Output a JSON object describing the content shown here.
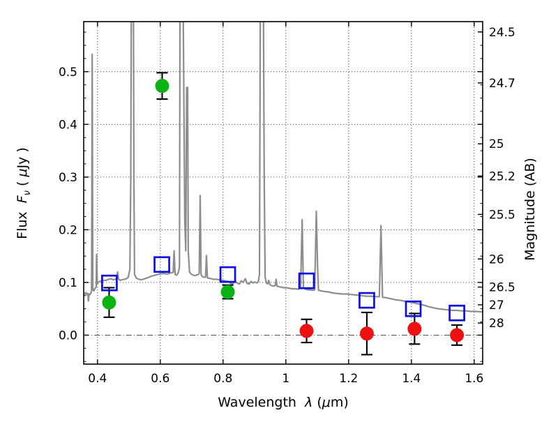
{
  "chart_data": {
    "type": "line+scatter",
    "title": "",
    "xlabel": "Wavelength λ (μm)",
    "ylabel_left": "Flux Fν ( μJy )",
    "ylabel_right": "Magnitude (AB)",
    "xlim": [
      0.356,
      1.627
    ],
    "ylim": [
      -0.055,
      0.595
    ],
    "grid": true,
    "grid_style": "dotted, zero line dash-dot",
    "x_ticks": {
      "values": [
        0.4,
        0.6,
        0.8,
        1.0,
        1.2,
        1.4,
        1.6
      ],
      "labels": [
        "0.4",
        "0.6",
        "0.8",
        "1",
        "1.2",
        "1.4",
        "1.6"
      ]
    },
    "y_ticks_left": {
      "values": [
        0.0,
        0.1,
        0.2,
        0.3,
        0.4,
        0.5
      ],
      "labels": [
        "0.0",
        "0.1",
        "0.2",
        "0.3",
        "0.4",
        "0.5"
      ]
    },
    "y_minor_step": 0.025,
    "mag_zeropoint_ab_ujy": 23.9,
    "y_ticks_right": {
      "values": [
        24.5,
        24.7,
        25.0,
        25.2,
        25.5,
        26.0,
        26.5,
        27.0,
        28.0
      ],
      "labels": [
        "24.5",
        "24.7",
        "25",
        "25.2",
        "25.5",
        "26",
        "26.5",
        "27",
        "28"
      ]
    },
    "colors": {
      "spectrum": "#8d8d8d",
      "detections": "#0ab214",
      "model_photometry": "#0d0de8",
      "nondetections": "#ee1111",
      "errorbar": "#000000",
      "frame": "#000000"
    },
    "series": [
      {
        "name": "model-spectrum",
        "type": "line",
        "color": "#8d8d8d",
        "points": [
          [
            0.356,
            0.08
          ],
          [
            0.36,
            0.078
          ],
          [
            0.363,
            0.081
          ],
          [
            0.366,
            0.077
          ],
          [
            0.369,
            0.079
          ],
          [
            0.371,
            0.065
          ],
          [
            0.373,
            0.078
          ],
          [
            0.376,
            0.077
          ],
          [
            0.379,
            0.08
          ],
          [
            0.381,
            0.086
          ],
          [
            0.383,
            0.533
          ],
          [
            0.385,
            0.086
          ],
          [
            0.388,
            0.084
          ],
          [
            0.391,
            0.088
          ],
          [
            0.394,
            0.09
          ],
          [
            0.396,
            0.092
          ],
          [
            0.397,
            0.153
          ],
          [
            0.399,
            0.097
          ],
          [
            0.402,
            0.1
          ],
          [
            0.407,
            0.102
          ],
          [
            0.413,
            0.103
          ],
          [
            0.42,
            0.104
          ],
          [
            0.428,
            0.104
          ],
          [
            0.435,
            0.106
          ],
          [
            0.443,
            0.107
          ],
          [
            0.45,
            0.105
          ],
          [
            0.457,
            0.106
          ],
          [
            0.461,
            0.108
          ],
          [
            0.464,
            0.12
          ],
          [
            0.467,
            0.106
          ],
          [
            0.472,
            0.104
          ],
          [
            0.478,
            0.105
          ],
          [
            0.485,
            0.106
          ],
          [
            0.492,
            0.107
          ],
          [
            0.498,
            0.11
          ],
          [
            0.503,
            0.125
          ],
          [
            0.506,
            0.3
          ],
          [
            0.508,
            0.7
          ],
          [
            0.514,
            0.7
          ],
          [
            0.516,
            0.3
          ],
          [
            0.518,
            0.115
          ],
          [
            0.524,
            0.108
          ],
          [
            0.532,
            0.106
          ],
          [
            0.541,
            0.105
          ],
          [
            0.55,
            0.107
          ],
          [
            0.56,
            0.109
          ],
          [
            0.572,
            0.112
          ],
          [
            0.585,
            0.114
          ],
          [
            0.598,
            0.116
          ],
          [
            0.61,
            0.117
          ],
          [
            0.622,
            0.116
          ],
          [
            0.633,
            0.118
          ],
          [
            0.641,
            0.119
          ],
          [
            0.644,
            0.16
          ],
          [
            0.647,
            0.115
          ],
          [
            0.652,
            0.114
          ],
          [
            0.657,
            0.118
          ],
          [
            0.661,
            0.13
          ],
          [
            0.663,
            0.7
          ],
          [
            0.672,
            0.7
          ],
          [
            0.675,
            0.45
          ],
          [
            0.678,
            0.22
          ],
          [
            0.681,
            0.16
          ],
          [
            0.684,
            0.47
          ],
          [
            0.687,
            0.47
          ],
          [
            0.689,
            0.16
          ],
          [
            0.693,
            0.12
          ],
          [
            0.698,
            0.116
          ],
          [
            0.704,
            0.114
          ],
          [
            0.71,
            0.113
          ],
          [
            0.716,
            0.114
          ],
          [
            0.721,
            0.115
          ],
          [
            0.724,
            0.118
          ],
          [
            0.727,
            0.265
          ],
          [
            0.73,
            0.115
          ],
          [
            0.734,
            0.111
          ],
          [
            0.739,
            0.11
          ],
          [
            0.744,
            0.11
          ],
          [
            0.747,
            0.151
          ],
          [
            0.75,
            0.109
          ],
          [
            0.755,
            0.108
          ],
          [
            0.762,
            0.107
          ],
          [
            0.77,
            0.106
          ],
          [
            0.779,
            0.106
          ],
          [
            0.788,
            0.105
          ],
          [
            0.797,
            0.104
          ],
          [
            0.806,
            0.103
          ],
          [
            0.815,
            0.102
          ],
          [
            0.823,
            0.099
          ],
          [
            0.831,
            0.097
          ],
          [
            0.838,
            0.102
          ],
          [
            0.845,
            0.099
          ],
          [
            0.852,
            0.097
          ],
          [
            0.858,
            0.103
          ],
          [
            0.864,
            0.1
          ],
          [
            0.871,
            0.107
          ],
          [
            0.877,
            0.098
          ],
          [
            0.883,
            0.097
          ],
          [
            0.889,
            0.102
          ],
          [
            0.895,
            0.099
          ],
          [
            0.901,
            0.101
          ],
          [
            0.907,
            0.099
          ],
          [
            0.912,
            0.101
          ],
          [
            0.916,
            0.115
          ],
          [
            0.919,
            0.7
          ],
          [
            0.928,
            0.7
          ],
          [
            0.931,
            0.3
          ],
          [
            0.934,
            0.11
          ],
          [
            0.938,
            0.099
          ],
          [
            0.942,
            0.097
          ],
          [
            0.945,
            0.104
          ],
          [
            0.949,
            0.096
          ],
          [
            0.954,
            0.094
          ],
          [
            0.96,
            0.093
          ],
          [
            0.966,
            0.094
          ],
          [
            0.969,
            0.106
          ],
          [
            0.972,
            0.093
          ],
          [
            0.978,
            0.092
          ],
          [
            0.985,
            0.091
          ],
          [
            0.993,
            0.09
          ],
          [
            1.001,
            0.09
          ],
          [
            1.01,
            0.089
          ],
          [
            1.02,
            0.088
          ],
          [
            1.03,
            0.088
          ],
          [
            1.04,
            0.087
          ],
          [
            1.047,
            0.092
          ],
          [
            1.052,
            0.219
          ],
          [
            1.056,
            0.09
          ],
          [
            1.062,
            0.087
          ],
          [
            1.07,
            0.086
          ],
          [
            1.078,
            0.086
          ],
          [
            1.086,
            0.085
          ],
          [
            1.092,
            0.086
          ],
          [
            1.097,
            0.235
          ],
          [
            1.101,
            0.13
          ],
          [
            1.104,
            0.085
          ],
          [
            1.112,
            0.084
          ],
          [
            1.122,
            0.083
          ],
          [
            1.135,
            0.082
          ],
          [
            1.15,
            0.08
          ],
          [
            1.165,
            0.079
          ],
          [
            1.18,
            0.078
          ],
          [
            1.195,
            0.078
          ],
          [
            1.21,
            0.077
          ],
          [
            1.225,
            0.076
          ],
          [
            1.24,
            0.075
          ],
          [
            1.255,
            0.074
          ],
          [
            1.27,
            0.074
          ],
          [
            1.285,
            0.073
          ],
          [
            1.298,
            0.073
          ],
          [
            1.303,
            0.208
          ],
          [
            1.308,
            0.072
          ],
          [
            1.32,
            0.071
          ],
          [
            1.335,
            0.069
          ],
          [
            1.35,
            0.067
          ],
          [
            1.365,
            0.066
          ],
          [
            1.38,
            0.064
          ],
          [
            1.395,
            0.063
          ],
          [
            1.41,
            0.061
          ],
          [
            1.425,
            0.059
          ],
          [
            1.44,
            0.057
          ],
          [
            1.455,
            0.054
          ],
          [
            1.47,
            0.052
          ],
          [
            1.485,
            0.05
          ],
          [
            1.5,
            0.049
          ],
          [
            1.515,
            0.048
          ],
          [
            1.53,
            0.047
          ],
          [
            1.545,
            0.047
          ],
          [
            1.56,
            0.046
          ],
          [
            1.575,
            0.046
          ],
          [
            1.59,
            0.045
          ],
          [
            1.605,
            0.045
          ],
          [
            1.627,
            0.044
          ]
        ]
      },
      {
        "name": "observed-detections-green",
        "type": "scatter",
        "marker": "filled-circle",
        "color": "#0ab214",
        "points": [
          {
            "x": 0.437,
            "y": 0.062,
            "yerr": 0.028
          },
          {
            "x": 0.606,
            "y": 0.473,
            "yerr": 0.025
          },
          {
            "x": 0.815,
            "y": 0.082,
            "yerr": 0.013
          }
        ]
      },
      {
        "name": "model-photometry-blue-squares",
        "type": "scatter",
        "marker": "open-square",
        "color": "#0d0de8",
        "points": [
          {
            "x": 0.438,
            "y": 0.099
          },
          {
            "x": 0.605,
            "y": 0.134
          },
          {
            "x": 0.815,
            "y": 0.115
          },
          {
            "x": 1.066,
            "y": 0.103
          },
          {
            "x": 1.258,
            "y": 0.066
          },
          {
            "x": 1.406,
            "y": 0.05
          },
          {
            "x": 1.545,
            "y": 0.042
          }
        ]
      },
      {
        "name": "observed-nondetections-red",
        "type": "scatter",
        "marker": "filled-circle",
        "color": "#ee1111",
        "points": [
          {
            "x": 1.066,
            "y": 0.008,
            "yerr": 0.022
          },
          {
            "x": 1.258,
            "y": 0.003,
            "yerr": 0.04
          },
          {
            "x": 1.41,
            "y": 0.012,
            "yerr": 0.029
          },
          {
            "x": 1.545,
            "y": 0.0,
            "yerr": 0.019
          }
        ]
      }
    ]
  },
  "labels": {
    "ylabel_left_word": "Flux  ",
    "ylabel_left_symbol": "F",
    "ylabel_left_symbol_sub": "ν",
    "ylabel_left_unit_open": " ( ",
    "ylabel_left_unit_mu": "μ",
    "ylabel_left_unit_rest": "Jy )",
    "ylabel_right": "Magnitude (AB)",
    "xlabel_word": "Wavelength  ",
    "xlabel_symbol": "λ",
    "xlabel_unit_open": " (",
    "xlabel_unit_mu": "μ",
    "xlabel_unit_rest": "m)"
  }
}
